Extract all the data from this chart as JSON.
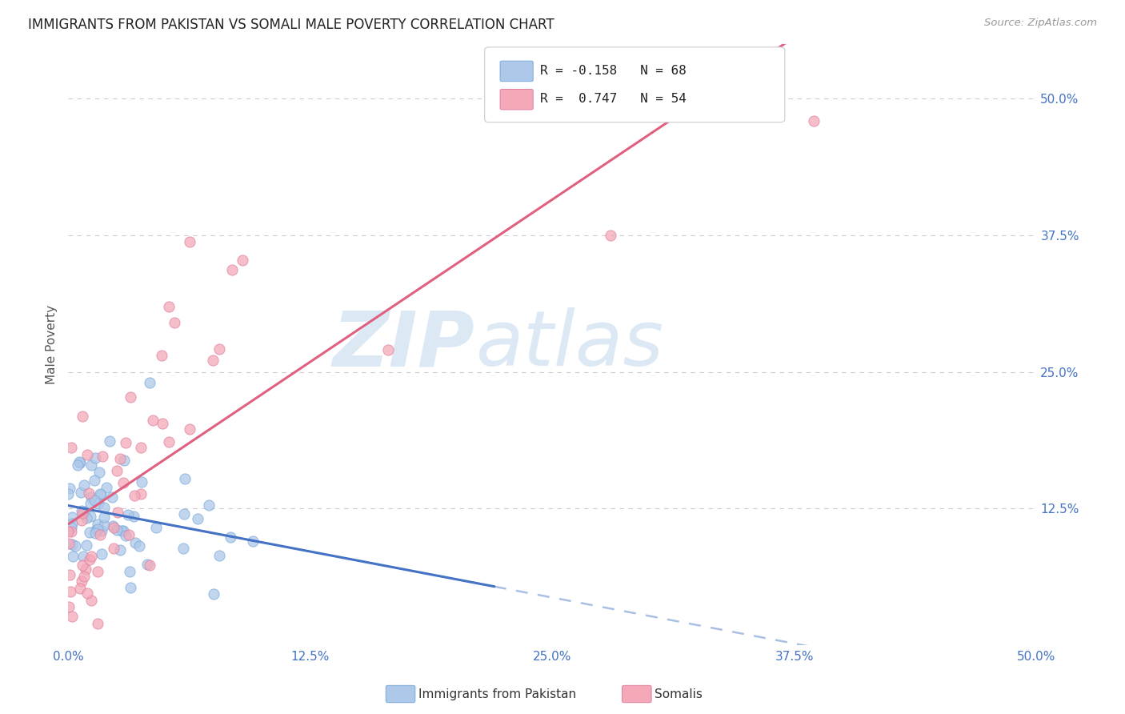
{
  "title": "IMMIGRANTS FROM PAKISTAN VS SOMALI MALE POVERTY CORRELATION CHART",
  "source_text": "Source: ZipAtlas.com",
  "ylabel": "Male Poverty",
  "xlim": [
    0.0,
    0.5
  ],
  "ylim": [
    0.0,
    0.55
  ],
  "xtick_labels": [
    "0.0%",
    "12.5%",
    "25.0%",
    "37.5%",
    "50.0%"
  ],
  "xtick_values": [
    0.0,
    0.125,
    0.25,
    0.375,
    0.5
  ],
  "ytick_labels": [
    "12.5%",
    "25.0%",
    "37.5%",
    "50.0%"
  ],
  "ytick_values": [
    0.125,
    0.25,
    0.375,
    0.5
  ],
  "title_color": "#222222",
  "title_fontsize": 12,
  "axis_label_color": "#555555",
  "tick_label_color_right": "#4472c4",
  "background_color": "#ffffff",
  "grid_color": "#cccccc",
  "watermark_zip": "ZIP",
  "watermark_atlas": "atlas",
  "watermark_color": "#dce9f5",
  "pakistan_color": "#aec8ea",
  "pakistan_edge_color": "#7aaad8",
  "somali_color": "#f4a8b8",
  "somali_edge_color": "#e080a0",
  "pakistan_line_color": "#4472c4",
  "somali_line_color": "#e06080",
  "legend_label1": "R = -0.158   N = 68",
  "legend_label2": "R =  0.747   N = 54",
  "bot_label1": "Immigrants from Pakistan",
  "bot_label2": "Somalis"
}
